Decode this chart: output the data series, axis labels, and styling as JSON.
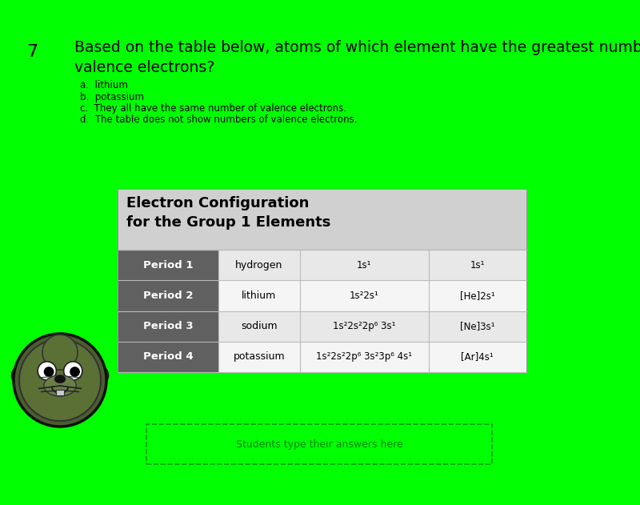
{
  "bg_color": "#00FF00",
  "question_number": "7",
  "question_text_line1": "Based on the table below, atoms of which element have the greatest number of",
  "question_text_line2": "valence electrons?",
  "choices": [
    "a.  lithium",
    "b.  potassium",
    "c.  They all have the same number of valence electrons.",
    "d.  The table does not show numbers of valence electrons."
  ],
  "table_title_line1": "Electron Configuration",
  "table_title_line2": "for the Group 1 Elements",
  "header_bg": "#d0d0d0",
  "row_dark_bg": "#606060",
  "row_light_bg": "#e8e8e8",
  "row_white_bg": "#f5f5f5",
  "periods": [
    "Period 1",
    "Period 2",
    "Period 3",
    "Period 4"
  ],
  "elements": [
    "hydrogen",
    "lithium",
    "sodium",
    "potassium"
  ],
  "full_config": [
    "1s¹",
    "1s²2s¹",
    "1s²2s²2p⁶ 3s¹",
    "1s²2s²2p⁶ 3s²3p⁶ 4s¹"
  ],
  "short_config": [
    "1s¹",
    "[He]2s¹",
    "[Ne]3s¹",
    "[Ar]4s¹"
  ],
  "answer_box_text": "Students type their answers here",
  "mascot_color": "#5a6e3a",
  "mascot_face_color": "#6a7e48",
  "mascot_dark": "#222222",
  "mascot_outline": "#111111"
}
